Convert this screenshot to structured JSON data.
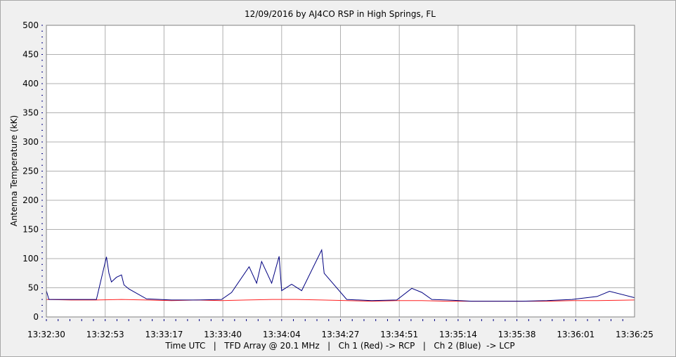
{
  "chart_data": {
    "type": "line",
    "title": "12/09/2016  by  AJ4CO RSP  in  High Springs, FL",
    "xlabel": "Time UTC   |   TFD Array @ 20.1 MHz   |   Ch 1 (Red) -> RCP   |   Ch 2 (Blue)  -> LCP",
    "ylabel": "Antenna Temperature (kK)",
    "x_tick_labels": [
      "13:32:30",
      "13:32:53",
      "13:33:17",
      "13:33:40",
      "13:34:04",
      "13:34:27",
      "13:34:51",
      "13:35:14",
      "13:35:38",
      "13:36:01",
      "13:36:25"
    ],
    "x_range": [
      "13:32:30",
      "13:36:25"
    ],
    "ylim": [
      0,
      500
    ],
    "y_ticks": [
      0,
      50,
      100,
      150,
      200,
      250,
      300,
      350,
      400,
      450,
      500
    ],
    "grid": true,
    "series": [
      {
        "color": "#ff2020",
        "x": [
          "13:32:30",
          "13:32:40",
          "13:32:50",
          "13:33:00",
          "13:33:10",
          "13:33:20",
          "13:33:30",
          "13:33:40",
          "13:33:50",
          "13:34:00",
          "13:34:10",
          "13:34:20",
          "13:34:30",
          "13:34:40",
          "13:34:50",
          "13:35:00",
          "13:35:10",
          "13:35:20",
          "13:35:30",
          "13:35:40",
          "13:35:50",
          "13:36:00",
          "13:36:10",
          "13:36:25"
        ],
        "values": [
          30,
          29,
          29,
          30,
          29,
          28,
          29,
          28,
          29,
          30,
          30,
          29,
          28,
          27,
          28,
          28,
          27,
          27,
          27,
          27,
          27,
          28,
          28,
          29
        ]
      },
      {
        "color": "#000080",
        "x": [
          "13:32:30",
          "13:32:31",
          "13:32:40",
          "13:32:50",
          "13:32:54",
          "13:32:55",
          "13:32:56",
          "13:32:58",
          "13:33:00",
          "13:33:01",
          "13:33:03",
          "13:33:10",
          "13:33:20",
          "13:33:30",
          "13:33:40",
          "13:33:44",
          "13:33:51",
          "13:33:54",
          "13:33:56",
          "13:34:00",
          "13:34:03",
          "13:34:04",
          "13:34:08",
          "13:34:12",
          "13:34:20",
          "13:34:21",
          "13:34:30",
          "13:34:40",
          "13:34:50",
          "13:34:56",
          "13:35:00",
          "13:35:04",
          "13:35:10",
          "13:35:20",
          "13:35:30",
          "13:35:40",
          "13:35:50",
          "13:36:00",
          "13:36:10",
          "13:36:15",
          "13:36:25"
        ],
        "values": [
          45,
          30,
          30,
          30,
          103,
          75,
          60,
          68,
          72,
          55,
          48,
          31,
          29,
          29,
          30,
          42,
          86,
          58,
          95,
          58,
          104,
          45,
          56,
          45,
          115,
          75,
          30,
          28,
          29,
          49,
          42,
          30,
          29,
          27,
          27,
          27,
          28,
          30,
          35,
          44,
          33
        ]
      }
    ]
  }
}
